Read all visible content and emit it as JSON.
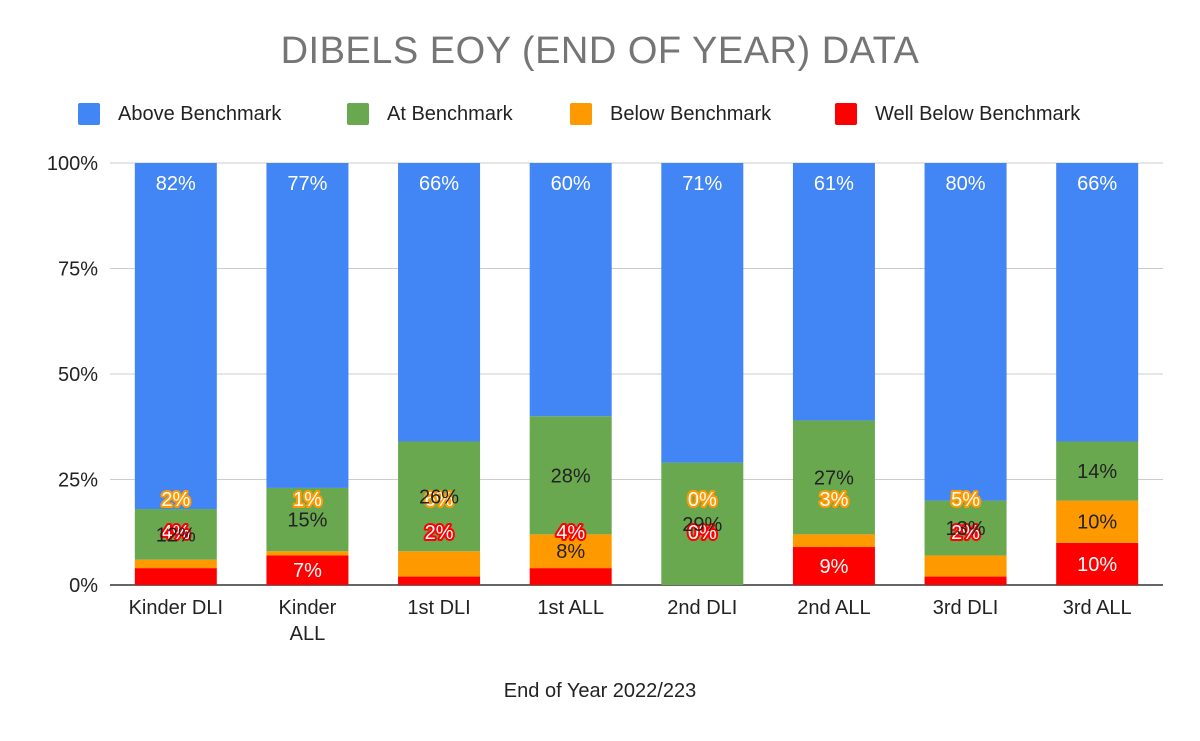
{
  "chart_data": {
    "type": "bar",
    "stacked": true,
    "title": "DIBELS EOY (END OF YEAR) DATA",
    "xlabel": "End of Year 2022/223",
    "ylabel": "",
    "ylim": [
      0,
      100
    ],
    "yticks": [
      "0%",
      "25%",
      "50%",
      "75%",
      "100%"
    ],
    "ytick_values": [
      0,
      25,
      50,
      75,
      100
    ],
    "grid": true,
    "legend_position": "top",
    "categories": [
      [
        "Kinder DLI"
      ],
      [
        "Kinder",
        "ALL"
      ],
      [
        "1st DLI"
      ],
      [
        "1st ALL"
      ],
      [
        "2nd DLI"
      ],
      [
        "2nd ALL"
      ],
      [
        "3rd DLI"
      ],
      [
        "3rd ALL"
      ]
    ],
    "series": [
      {
        "name": "Well Below Benchmark",
        "color": "#ff0000",
        "label_color": "#ff0000",
        "values": [
          4,
          7,
          2,
          4,
          0,
          9,
          2,
          10
        ],
        "labels": [
          "4%",
          "7%",
          "2%",
          "4%",
          "0%",
          "9%",
          "2%",
          "10%"
        ]
      },
      {
        "name": "Below Benchmark",
        "color": "#ff9900",
        "label_color": "#ff9900",
        "values": [
          2,
          1,
          6,
          8,
          0,
          3,
          5,
          10
        ],
        "labels": [
          "2%",
          "1%",
          "6%",
          "8%",
          "0%",
          "3%",
          "5%",
          "10%"
        ]
      },
      {
        "name": "At Benchmark",
        "color": "#6aa84f",
        "label_color": "#6aa84f",
        "values": [
          12,
          15,
          26,
          28,
          29,
          27,
          13,
          14
        ],
        "labels": [
          "12%",
          "15%",
          "26%",
          "28%",
          "29%",
          "27%",
          "13%",
          "14%"
        ]
      },
      {
        "name": "Above Benchmark",
        "color": "#4285f4",
        "label_color": "#4285f4",
        "values": [
          82,
          77,
          66,
          60,
          71,
          61,
          80,
          66
        ],
        "labels": [
          "82%",
          "77%",
          "66%",
          "60%",
          "71%",
          "61%",
          "80%",
          "66%"
        ]
      }
    ],
    "legend": [
      "Above Benchmark",
      "At Benchmark",
      "Below Benchmark",
      "Well Below Benchmark"
    ]
  }
}
